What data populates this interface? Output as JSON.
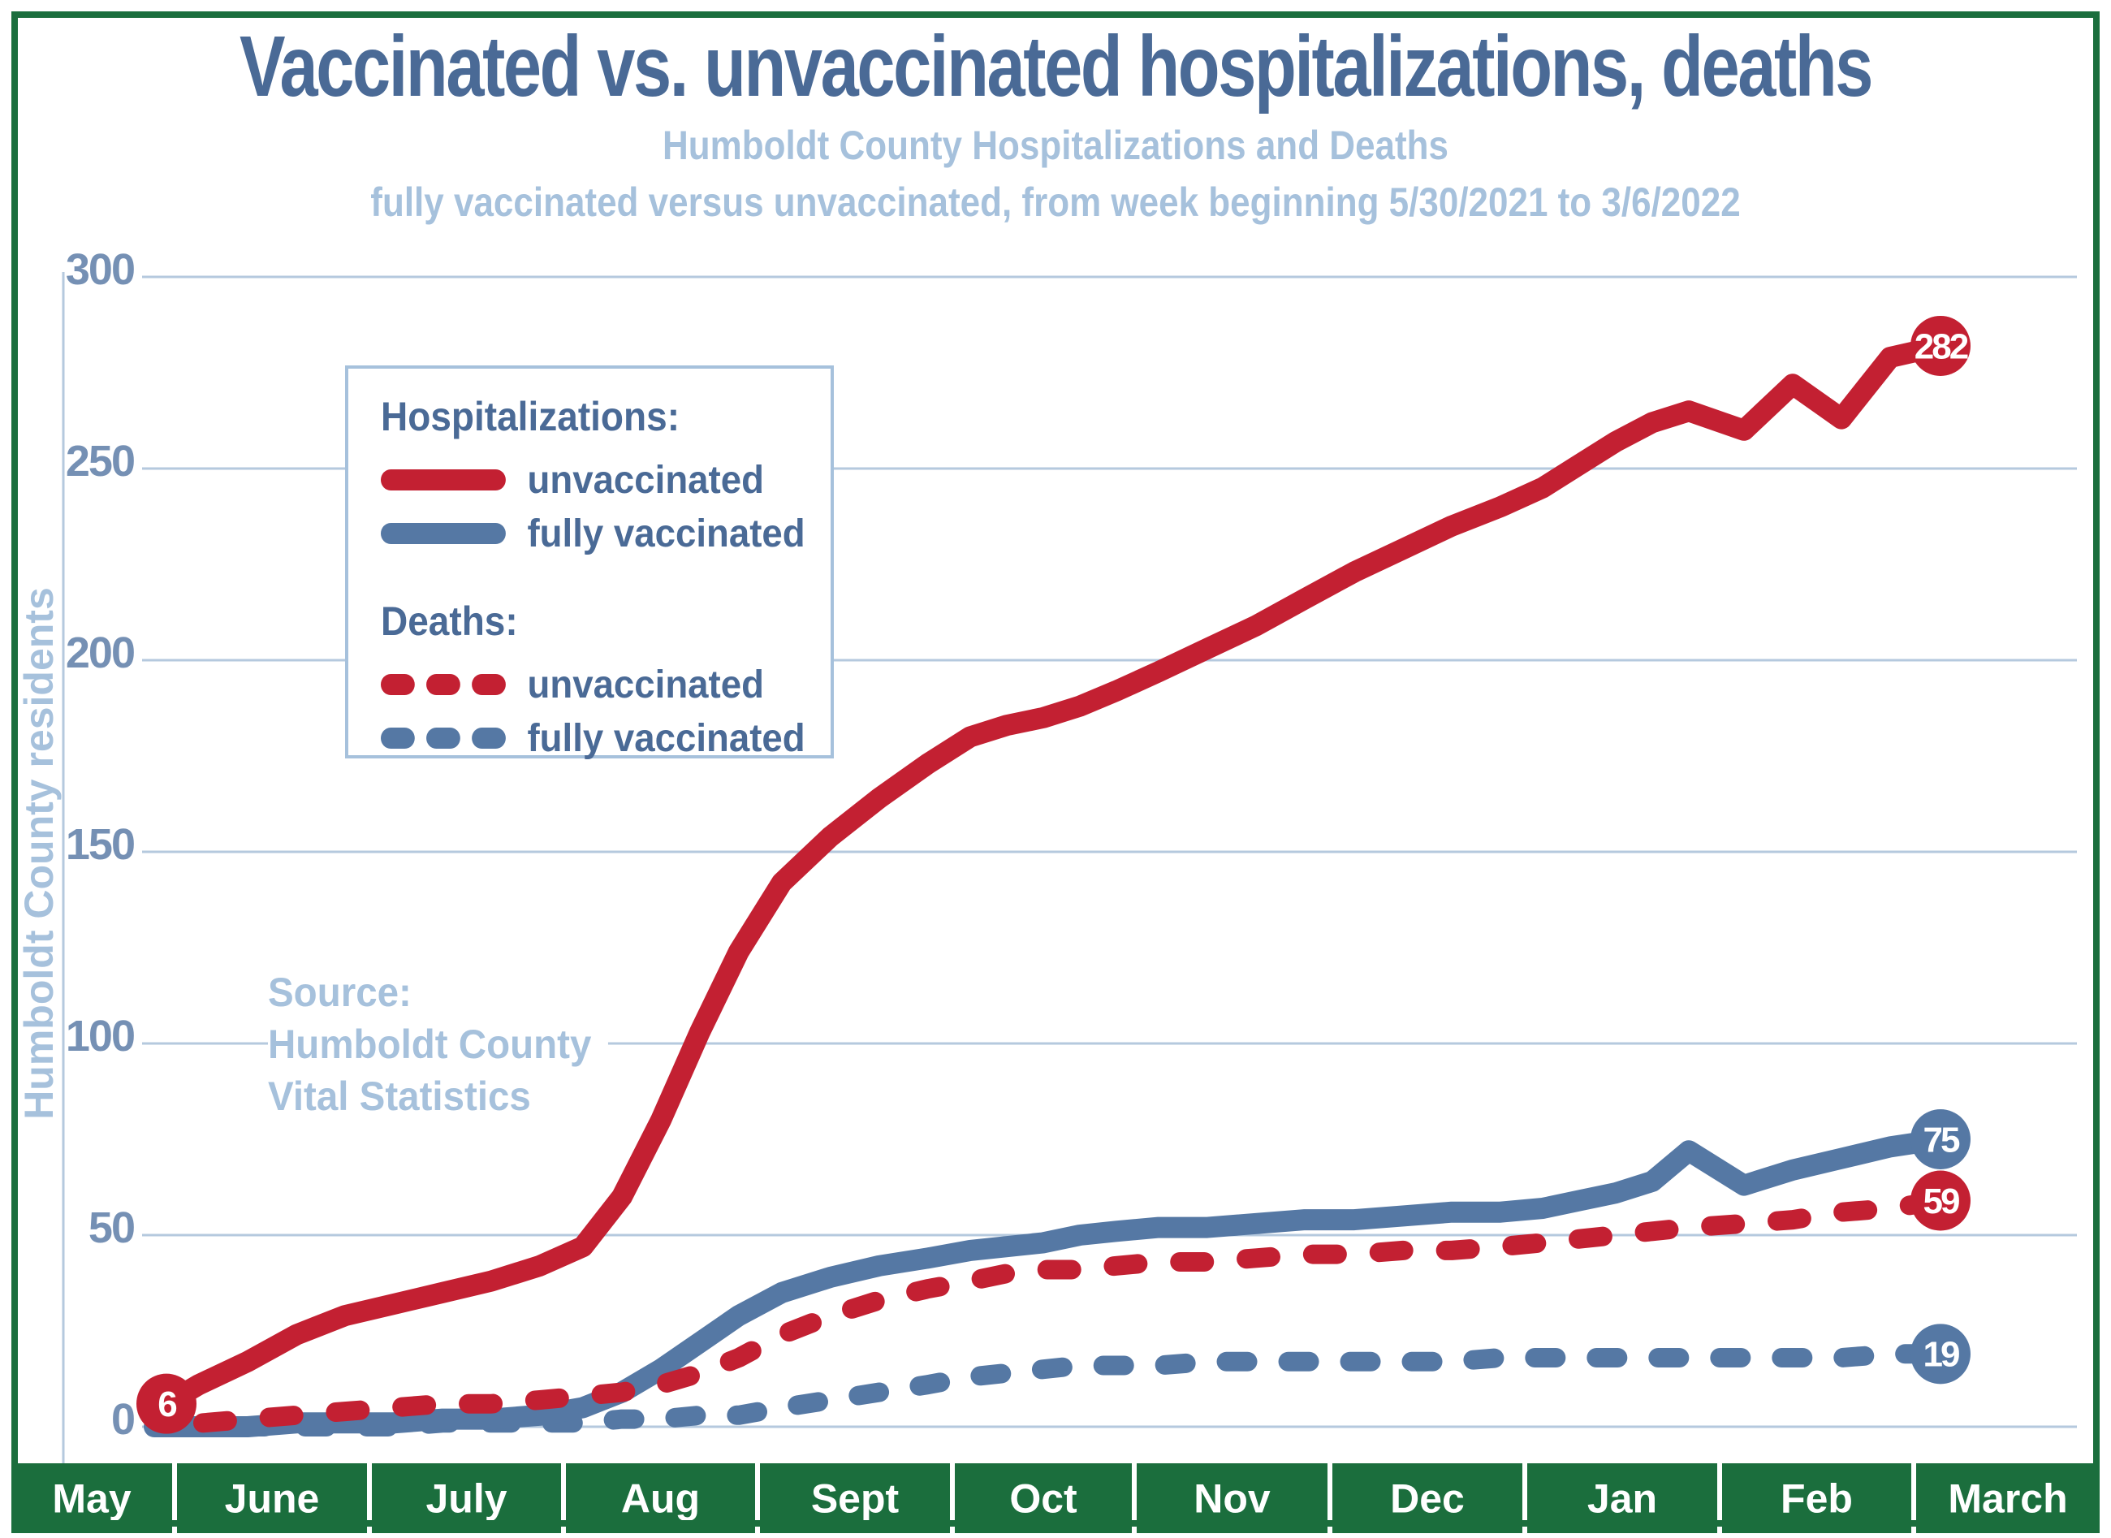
{
  "title": "Vaccinated vs. unvaccinated hospitalizations, deaths",
  "subtitle1": "Humboldt County Hospitalizations and Deaths",
  "subtitle2": "fully vaccinated versus unvaccinated, from week beginning 5/30/2021 to 3/6/2022",
  "y_axis_label": "Humboldt County residents",
  "source": {
    "line1": "Source:",
    "line2": "Humboldt County",
    "line3": "Vital Statistics"
  },
  "legend": {
    "hosp_header": "Hospitalizations:",
    "hosp_unvaccinated": "unvaccinated",
    "hosp_vaccinated": "fully vaccinated",
    "deaths_header": "Deaths:",
    "deaths_unvaccinated": "unvaccinated",
    "deaths_vaccinated": "fully vaccinated"
  },
  "colors": {
    "red": "#c32032",
    "blue": "#5578a4",
    "light_blue": "#a6c1dc",
    "grid_blue": "#b5c9de",
    "title_blue": "#4a6a96",
    "tick_blue": "#7590b4",
    "green": "#1b6e3d",
    "month_text": "#ffffff",
    "circle_text": "#ffffff"
  },
  "chart_data": {
    "type": "line",
    "title": "Humboldt County Hospitalizations and Deaths, fully vaccinated versus unvaccinated, from week beginning 5/30/2021 to 3/6/2022",
    "xlabel": "",
    "ylabel": "Humboldt County residents",
    "ylim": [
      0,
      300
    ],
    "yticks": [
      "0",
      "50",
      "100",
      "150",
      "200",
      "250",
      "300"
    ],
    "ytick_values": [
      0,
      50,
      100,
      150,
      200,
      250,
      300
    ],
    "grid": true,
    "legend_position": "upper-left",
    "months": [
      "May",
      "June",
      "July",
      "Aug",
      "Sept",
      "Oct",
      "Nov",
      "Dec",
      "Jan",
      "Feb",
      "March"
    ],
    "month_bounds_x": [
      14,
      215,
      455,
      694,
      933,
      1173,
      1397,
      1638,
      1878,
      2118,
      2357,
      2586
    ],
    "series": [
      {
        "name": "deaths-fully-vaccinated",
        "legend": "Deaths: fully vaccinated",
        "color_key": "blue",
        "dashed": true,
        "width": 24,
        "dash": "26 50",
        "end_label": "19",
        "points": [
          [
            300,
            0
          ],
          [
            365,
            0
          ],
          [
            425,
            0
          ],
          [
            485,
            0
          ],
          [
            545,
            1
          ],
          [
            605,
            1
          ],
          [
            665,
            1
          ],
          [
            718,
            1
          ],
          [
            766,
            2
          ],
          [
            814,
            2
          ],
          [
            862,
            3
          ],
          [
            910,
            3
          ],
          [
            963,
            5
          ],
          [
            1023,
            7
          ],
          [
            1083,
            9
          ],
          [
            1143,
            11
          ],
          [
            1195,
            13
          ],
          [
            1240,
            14
          ],
          [
            1285,
            15
          ],
          [
            1330,
            16
          ],
          [
            1375,
            16
          ],
          [
            1427,
            16
          ],
          [
            1487,
            17
          ],
          [
            1547,
            17
          ],
          [
            1607,
            17
          ],
          [
            1668,
            17
          ],
          [
            1728,
            17
          ],
          [
            1788,
            17
          ],
          [
            1848,
            18
          ],
          [
            1900,
            18
          ],
          [
            1945,
            18
          ],
          [
            1990,
            18
          ],
          [
            2035,
            18
          ],
          [
            2080,
            18
          ],
          [
            2148,
            18
          ],
          [
            2208,
            18
          ],
          [
            2268,
            18
          ],
          [
            2328,
            19
          ],
          [
            2390,
            19
          ]
        ]
      },
      {
        "name": "hospitalizations-fully-vaccinated",
        "legend": "Hospitalizations: fully vaccinated",
        "color_key": "blue",
        "dashed": false,
        "width": 26,
        "dash": "",
        "end_label": "75",
        "points": [
          [
            190,
            0
          ],
          [
            245,
            0
          ],
          [
            305,
            0
          ],
          [
            365,
            1
          ],
          [
            425,
            1
          ],
          [
            485,
            1
          ],
          [
            545,
            2
          ],
          [
            605,
            2
          ],
          [
            665,
            3
          ],
          [
            718,
            5
          ],
          [
            766,
            9
          ],
          [
            814,
            15
          ],
          [
            862,
            22
          ],
          [
            910,
            29
          ],
          [
            963,
            35
          ],
          [
            1023,
            39
          ],
          [
            1083,
            42
          ],
          [
            1143,
            44
          ],
          [
            1195,
            46
          ],
          [
            1240,
            47
          ],
          [
            1285,
            48
          ],
          [
            1330,
            50
          ],
          [
            1375,
            51
          ],
          [
            1427,
            52
          ],
          [
            1487,
            52
          ],
          [
            1547,
            53
          ],
          [
            1607,
            54
          ],
          [
            1668,
            54
          ],
          [
            1728,
            55
          ],
          [
            1788,
            56
          ],
          [
            1848,
            56
          ],
          [
            1900,
            57
          ],
          [
            1945,
            59
          ],
          [
            1990,
            61
          ],
          [
            2035,
            64
          ],
          [
            2080,
            72
          ],
          [
            2148,
            63
          ],
          [
            2208,
            67
          ],
          [
            2268,
            70
          ],
          [
            2328,
            73
          ],
          [
            2390,
            75
          ]
        ]
      },
      {
        "name": "deaths-unvaccinated",
        "legend": "Deaths: unvaccinated",
        "color_key": "red",
        "dashed": true,
        "width": 24,
        "dash": "30 52",
        "end_label": "59",
        "points": [
          [
            250,
            1
          ],
          [
            305,
            2
          ],
          [
            365,
            3
          ],
          [
            425,
            4
          ],
          [
            485,
            5
          ],
          [
            545,
            6
          ],
          [
            605,
            6
          ],
          [
            665,
            7
          ],
          [
            718,
            8
          ],
          [
            766,
            9
          ],
          [
            814,
            11
          ],
          [
            862,
            14
          ],
          [
            910,
            18
          ],
          [
            963,
            24
          ],
          [
            1023,
            29
          ],
          [
            1083,
            33
          ],
          [
            1143,
            36
          ],
          [
            1195,
            38
          ],
          [
            1240,
            40
          ],
          [
            1285,
            41
          ],
          [
            1330,
            41
          ],
          [
            1375,
            42
          ],
          [
            1427,
            43
          ],
          [
            1487,
            43
          ],
          [
            1547,
            44
          ],
          [
            1607,
            45
          ],
          [
            1668,
            45
          ],
          [
            1728,
            46
          ],
          [
            1788,
            46
          ],
          [
            1848,
            47
          ],
          [
            1900,
            48
          ],
          [
            1945,
            49
          ],
          [
            1990,
            50
          ],
          [
            2035,
            51
          ],
          [
            2080,
            52
          ],
          [
            2148,
            53
          ],
          [
            2208,
            54
          ],
          [
            2268,
            56
          ],
          [
            2328,
            57
          ],
          [
            2390,
            59
          ]
        ]
      },
      {
        "name": "hospitalizations-unvaccinated",
        "legend": "Hospitalizations: unvaccinated",
        "color_key": "red",
        "dashed": false,
        "width": 26,
        "dash": "",
        "start_label": "6",
        "end_label": "282",
        "points": [
          [
            205,
            6
          ],
          [
            245,
            11
          ],
          [
            305,
            17
          ],
          [
            365,
            24
          ],
          [
            425,
            29
          ],
          [
            485,
            32
          ],
          [
            545,
            35
          ],
          [
            605,
            38
          ],
          [
            665,
            42
          ],
          [
            718,
            47
          ],
          [
            766,
            60
          ],
          [
            814,
            80
          ],
          [
            862,
            103
          ],
          [
            910,
            124
          ],
          [
            963,
            142
          ],
          [
            1023,
            154
          ],
          [
            1083,
            164
          ],
          [
            1143,
            173
          ],
          [
            1195,
            180
          ],
          [
            1240,
            183
          ],
          [
            1285,
            185
          ],
          [
            1330,
            188
          ],
          [
            1375,
            192
          ],
          [
            1427,
            197
          ],
          [
            1487,
            203
          ],
          [
            1547,
            209
          ],
          [
            1607,
            216
          ],
          [
            1668,
            223
          ],
          [
            1728,
            229
          ],
          [
            1788,
            235
          ],
          [
            1848,
            240
          ],
          [
            1900,
            245
          ],
          [
            1945,
            251
          ],
          [
            1990,
            257
          ],
          [
            2035,
            262
          ],
          [
            2080,
            265
          ],
          [
            2148,
            260
          ],
          [
            2208,
            272
          ],
          [
            2268,
            263
          ],
          [
            2328,
            279
          ],
          [
            2390,
            282
          ]
        ]
      }
    ]
  }
}
